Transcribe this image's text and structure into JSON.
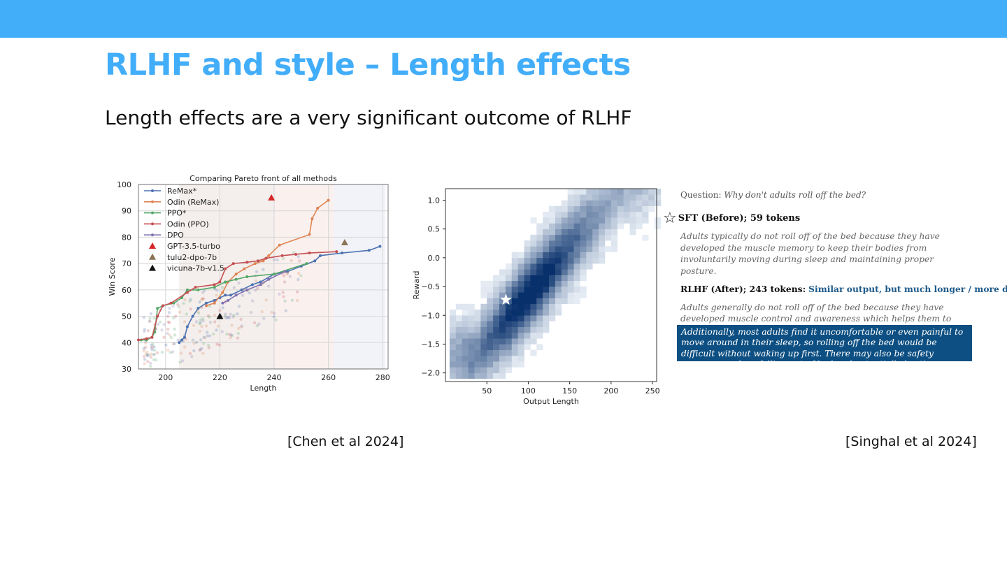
{
  "slide": {
    "title": "RLHF and style – Length effects",
    "subtitle": "Length effects are a very significant outcome of RLHF",
    "citation_left": "[Chen et al 2024]",
    "citation_right": "[Singhal et al 2024]",
    "accent_color": "#42adf9"
  },
  "example": {
    "question_label": "Question:",
    "question_text": "Why don't adults roll off the bed?",
    "sft_label": "SFT (Before); 59 tokens",
    "sft_text": "Adults typically do not roll off of the bed because they have developed the muscle memory to keep their bodies from involuntarily moving during sleep and maintaining proper posture.",
    "rlhf_label": "RLHF (After); 243 tokens:",
    "rlhf_note": "Similar output, but much longer / more details",
    "rlhf_text": "Adults generally do not roll off of the bed because they have developed muscle control and awareness which helps them to remain upright while sleeping.",
    "rlhf_highlight": "Additionally, most adults find it uncomfortable or even painful to move around in their sleep, so rolling off the bed would be difficult without waking up first. There may also be safety concerns such as falling out of bed and potentially hurting oneself if one were to lose balance or fall from the ...",
    "highlight_color": "#0d4f82",
    "star_icon": "star-outline-icon"
  },
  "chart_data": [
    {
      "type": "line",
      "title": "Comparing Pareto front of all methods",
      "xlabel": "Length",
      "ylabel": "Win Score",
      "xlim": [
        190,
        282
      ],
      "ylim": [
        30,
        100
      ],
      "xticks": [
        200,
        220,
        240,
        260,
        280
      ],
      "yticks": [
        30,
        40,
        50,
        60,
        70,
        80,
        90,
        100
      ],
      "grid": true,
      "legend_position": "top-left",
      "series": [
        {
          "name": "ReMax*",
          "color": "#4c72b0",
          "points": [
            [
              205,
              40
            ],
            [
              206,
              41
            ],
            [
              207,
              42
            ],
            [
              208,
              46
            ],
            [
              210,
              50
            ],
            [
              212,
              53
            ],
            [
              215,
              55
            ],
            [
              218,
              56
            ],
            [
              220,
              57
            ],
            [
              222,
              58
            ],
            [
              224,
              58
            ],
            [
              228,
              60
            ],
            [
              232,
              62
            ],
            [
              235,
              63
            ],
            [
              240,
              66
            ],
            [
              245,
              67
            ],
            [
              250,
              69
            ],
            [
              255,
              71
            ],
            [
              257,
              73
            ],
            [
              265,
              74
            ],
            [
              275,
              75
            ],
            [
              279,
              76.5
            ]
          ]
        },
        {
          "name": "Odin (ReMax)",
          "color": "#dd8452",
          "points": [
            [
              215,
              54
            ],
            [
              218,
              55
            ],
            [
              221,
              59
            ],
            [
              223,
              63
            ],
            [
              226,
              66
            ],
            [
              229,
              68
            ],
            [
              233,
              70
            ],
            [
              236,
              71
            ],
            [
              238,
              73
            ],
            [
              242,
              77
            ],
            [
              253,
              81
            ],
            [
              254,
              87
            ],
            [
              256,
              91
            ],
            [
              260,
              94
            ]
          ]
        },
        {
          "name": "PPO*",
          "color": "#55a868",
          "points": [
            [
              191,
              41
            ],
            [
              193,
              41
            ],
            [
              195,
              42
            ],
            [
              196,
              44
            ],
            [
              197,
              53
            ],
            [
              199,
              54
            ],
            [
              203,
              55
            ],
            [
              206,
              57
            ],
            [
              208,
              60
            ],
            [
              212,
              60
            ],
            [
              218,
              61
            ],
            [
              222,
              63
            ],
            [
              226,
              64
            ],
            [
              230,
              65
            ],
            [
              240,
              66
            ],
            [
              252,
              70
            ]
          ]
        },
        {
          "name": "Odin (PPO)",
          "color": "#c44e52",
          "points": [
            [
              190,
              41
            ],
            [
              193,
              41.5
            ],
            [
              195,
              42
            ],
            [
              197,
              50
            ],
            [
              199,
              54
            ],
            [
              202,
              55
            ],
            [
              208,
              59
            ],
            [
              211,
              61
            ],
            [
              218,
              62
            ],
            [
              220,
              63
            ],
            [
              222,
              68
            ],
            [
              225,
              70
            ],
            [
              230,
              70.5
            ],
            [
              234,
              71
            ],
            [
              237,
              72
            ],
            [
              243,
              73
            ],
            [
              248,
              73.5
            ],
            [
              253,
              74
            ],
            [
              263,
              74.5
            ]
          ]
        },
        {
          "name": "DPO",
          "color": "#8172b2",
          "points": [
            [
              221,
              55
            ],
            [
              223,
              56
            ],
            [
              226,
              58
            ],
            [
              230,
              60
            ],
            [
              235,
              62
            ],
            [
              238,
              64
            ],
            [
              244,
              67
            ]
          ]
        }
      ],
      "markers": [
        {
          "name": "GPT-3.5-turbo",
          "color": "#d62728",
          "x": 239,
          "y": 95
        },
        {
          "name": "tulu2-dpo-7b",
          "color": "#8b7355",
          "x": 266,
          "y": 78
        },
        {
          "name": "vicuna-7b-v1.5",
          "color": "#111111",
          "x": 220,
          "y": 50
        }
      ]
    },
    {
      "type": "heatmap",
      "xlabel": "Output Length",
      "ylabel": "Reward",
      "xlim": [
        0,
        255
      ],
      "ylim": [
        -2.15,
        1.2
      ],
      "xticks": [
        50,
        100,
        150,
        200,
        250
      ],
      "yticks": [
        -2.0,
        -1.5,
        -1.0,
        -0.5,
        0.0,
        0.5,
        1.0
      ],
      "colormap": "Blues",
      "density_ridge": {
        "from": [
          60,
          -1.3
        ],
        "to": [
          175,
          0.6
        ]
      },
      "highlight_point": {
        "x": 73,
        "y": -0.73,
        "symbol": "white-star"
      }
    }
  ]
}
